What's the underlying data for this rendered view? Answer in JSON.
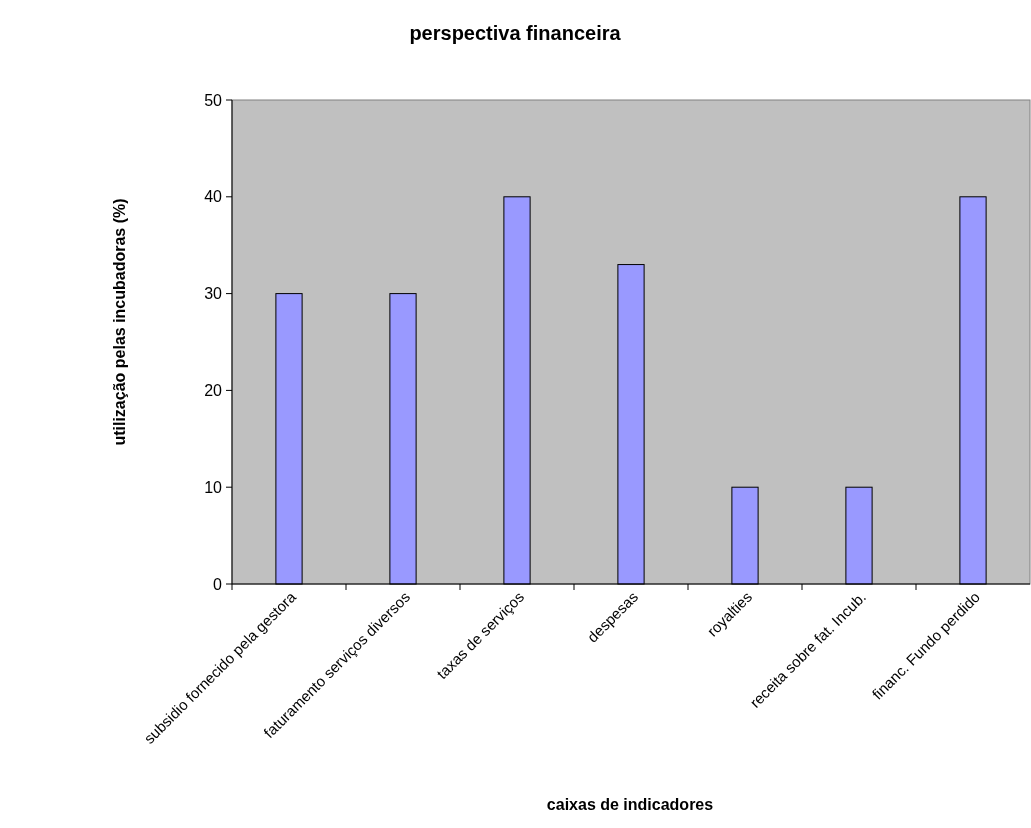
{
  "chart_data": {
    "type": "bar",
    "title": "perspectiva financeira",
    "xlabel": "caixas de indicadores",
    "ylabel": "utilização pelas incubadoras (%)",
    "categories": [
      "subsidio fornecido pela gestora",
      "faturamento serviços diversos",
      "taxas de serviços",
      "despesas",
      "royalties",
      "receita sobre fat. Incub.",
      "financ. Fundo perdido"
    ],
    "values": [
      30,
      30,
      40,
      33,
      10,
      10,
      40
    ],
    "color": "#9999ff",
    "ylim": [
      0,
      50
    ],
    "yticks": [
      0,
      10,
      20,
      30,
      40,
      50
    ],
    "grid": false
  }
}
